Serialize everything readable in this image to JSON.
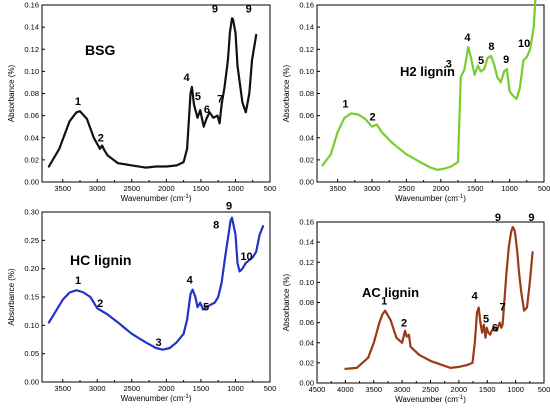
{
  "chart_data": [
    {
      "type": "line",
      "title": "BSG",
      "xlabel": "Wavenumber (cm",
      "xlabel_sup": "-1",
      "xlabel_end": ")",
      "ylabel": "Absorbance (%)",
      "xlim": [
        3800,
        500
      ],
      "ylim": [
        0,
        0.16
      ],
      "xticks": [
        3500,
        3000,
        2500,
        2000,
        1500,
        1000,
        500
      ],
      "xtick_labels": [
        "3500",
        "3000",
        "2500",
        "2000",
        "1500",
        "1000",
        "500"
      ],
      "yticks": [
        0,
        0.02,
        0.04,
        0.06,
        0.08,
        0.1,
        0.12,
        0.14,
        0.16
      ],
      "ytick_labels": [
        "0.00",
        "0.02",
        "0.04",
        "0.06",
        "0.08",
        "0.10",
        "0.12",
        "0.14",
        "0.16"
      ],
      "color": "#111111",
      "x": [
        3700,
        3550,
        3400,
        3300,
        3250,
        3150,
        3050,
        2960,
        2930,
        2900,
        2850,
        2700,
        2500,
        2300,
        2150,
        2000,
        1850,
        1750,
        1700,
        1650,
        1630,
        1600,
        1550,
        1510,
        1460,
        1420,
        1375,
        1320,
        1260,
        1230,
        1200,
        1160,
        1110,
        1080,
        1050,
        1035,
        1000,
        970,
        900,
        850,
        800,
        760,
        700
      ],
      "y": [
        0.014,
        0.03,
        0.055,
        0.063,
        0.064,
        0.057,
        0.04,
        0.03,
        0.033,
        0.029,
        0.024,
        0.017,
        0.015,
        0.013,
        0.014,
        0.014,
        0.015,
        0.018,
        0.03,
        0.08,
        0.086,
        0.07,
        0.058,
        0.065,
        0.05,
        0.057,
        0.063,
        0.058,
        0.06,
        0.053,
        0.07,
        0.085,
        0.11,
        0.135,
        0.148,
        0.147,
        0.135,
        0.105,
        0.072,
        0.063,
        0.08,
        0.11,
        0.133
      ],
      "peaks": [
        {
          "label": "1",
          "x": 3280,
          "y": 0.064
        },
        {
          "label": "2",
          "x": 2950,
          "y": 0.033
        },
        {
          "label": "4",
          "x": 1650,
          "y": 0.086
        },
        {
          "label": "5",
          "x": 1530,
          "y": 0.065
        },
        {
          "label": "6",
          "x": 1400,
          "y": 0.057
        },
        {
          "label": "7",
          "x": 1250,
          "y": 0.06
        },
        {
          "label": "9",
          "x": 1080,
          "y": 0.148
        },
        {
          "label": "9",
          "x": 910,
          "y": 0.148
        }
      ]
    },
    {
      "type": "line",
      "title": "H2 lignin",
      "xlabel": "Wavenumber (cm",
      "xlabel_sup": "-1",
      "xlabel_end": ")",
      "ylabel": "Absorbance (%)",
      "xlim": [
        3800,
        500
      ],
      "ylim": [
        0,
        0.16
      ],
      "xticks": [
        3500,
        3000,
        2500,
        2000,
        1500,
        1000,
        500
      ],
      "xtick_labels": [
        "3500",
        "3000",
        "2500",
        "2000",
        "1500",
        "1000",
        "500"
      ],
      "yticks": [
        0,
        0.02,
        0.04,
        0.06,
        0.08,
        0.1,
        0.12,
        0.14,
        0.16
      ],
      "ytick_labels": [
        "0.00",
        "0.02",
        "0.04",
        "0.06",
        "0.08",
        "0.10",
        "0.12",
        "0.14",
        "0.16"
      ],
      "color": "#7acc2c",
      "x": [
        3720,
        3600,
        3500,
        3400,
        3300,
        3200,
        3100,
        3000,
        2930,
        2860,
        2700,
        2500,
        2300,
        2150,
        2050,
        1950,
        1850,
        1750,
        1710,
        1660,
        1600,
        1560,
        1510,
        1460,
        1420,
        1370,
        1320,
        1270,
        1220,
        1180,
        1130,
        1080,
        1040,
        1000,
        950,
        900,
        850,
        800,
        750,
        700,
        650,
        620
      ],
      "y": [
        0.015,
        0.025,
        0.045,
        0.058,
        0.062,
        0.061,
        0.057,
        0.05,
        0.052,
        0.045,
        0.035,
        0.025,
        0.018,
        0.013,
        0.011,
        0.012,
        0.014,
        0.018,
        0.095,
        0.101,
        0.122,
        0.112,
        0.097,
        0.105,
        0.1,
        0.102,
        0.112,
        0.114,
        0.105,
        0.095,
        0.09,
        0.1,
        0.102,
        0.082,
        0.078,
        0.075,
        0.085,
        0.11,
        0.113,
        0.12,
        0.14,
        0.17
      ],
      "peaks": [
        {
          "label": "1",
          "x": 3330,
          "y": 0.062
        },
        {
          "label": "2",
          "x": 2950,
          "y": 0.052
        },
        {
          "label": "3",
          "x": 1740,
          "y": 0.098
        },
        {
          "label": "4",
          "x": 1600,
          "y": 0.122
        },
        {
          "label": "5",
          "x": 1460,
          "y": 0.105
        },
        {
          "label": "8",
          "x": 1250,
          "y": 0.114
        },
        {
          "label": "9",
          "x": 1050,
          "y": 0.102
        },
        {
          "label": "10",
          "x": 820,
          "y": 0.113
        }
      ]
    },
    {
      "type": "line",
      "title": "HC lignin",
      "xlabel": "Wavenumber (cm",
      "xlabel_sup": "-1",
      "xlabel_end": ")",
      "ylabel": "Absorbance (%)",
      "xlim": [
        3800,
        500
      ],
      "ylim": [
        0,
        0.3
      ],
      "xticks": [
        3500,
        3000,
        2500,
        2000,
        1500,
        1000,
        500
      ],
      "xtick_labels": [
        "3500",
        "3000",
        "2500",
        "2000",
        "1500",
        "1000",
        "500"
      ],
      "yticks": [
        0,
        0.05,
        0.1,
        0.15,
        0.2,
        0.25,
        0.3
      ],
      "ytick_labels": [
        "0.00",
        "0.05",
        "0.10",
        "0.15",
        "0.20",
        "0.25",
        "0.30"
      ],
      "color": "#2233c8",
      "x": [
        3700,
        3600,
        3500,
        3400,
        3300,
        3200,
        3100,
        3000,
        2930,
        2860,
        2700,
        2500,
        2300,
        2150,
        2050,
        1950,
        1850,
        1750,
        1700,
        1650,
        1620,
        1580,
        1550,
        1510,
        1470,
        1420,
        1350,
        1300,
        1250,
        1200,
        1150,
        1100,
        1070,
        1050,
        1000,
        970,
        940,
        900,
        850,
        800,
        750,
        700,
        650,
        600
      ],
      "y": [
        0.105,
        0.125,
        0.145,
        0.158,
        0.162,
        0.158,
        0.15,
        0.13,
        0.125,
        0.12,
        0.105,
        0.085,
        0.07,
        0.06,
        0.057,
        0.06,
        0.07,
        0.085,
        0.11,
        0.155,
        0.163,
        0.15,
        0.132,
        0.14,
        0.128,
        0.132,
        0.137,
        0.14,
        0.15,
        0.175,
        0.22,
        0.26,
        0.285,
        0.29,
        0.26,
        0.21,
        0.195,
        0.2,
        0.21,
        0.215,
        0.22,
        0.23,
        0.26,
        0.275
      ],
      "peaks": [
        {
          "label": "1",
          "x": 3250,
          "y": 0.162
        },
        {
          "label": "2",
          "x": 2930,
          "y": 0.125
        },
        {
          "label": "3",
          "x": 2100,
          "y": 0.058
        },
        {
          "label": "4",
          "x": 1620,
          "y": 0.163
        },
        {
          "label": "5",
          "x": 1470,
          "y": 0.13
        },
        {
          "label": "8",
          "x": 1150,
          "y": 0.26
        },
        {
          "label": "9",
          "x": 1050,
          "y": 0.29
        },
        {
          "label": "10",
          "x": 900,
          "y": 0.205
        }
      ]
    },
    {
      "type": "line",
      "title": "AC lignin",
      "xlabel": "Wavenumber (cm",
      "xlabel_sup": "-1",
      "xlabel_end": ")",
      "ylabel": "Absorbance (%)",
      "xlim": [
        4500,
        500
      ],
      "ylim": [
        0,
        0.16
      ],
      "xticks": [
        4500,
        4000,
        3500,
        3000,
        2500,
        2000,
        1500,
        1000,
        500
      ],
      "xtick_labels": [
        "4500",
        "4000",
        "3500",
        "3000",
        "2500",
        "2000",
        "1500",
        "1000",
        "500"
      ],
      "yticks": [
        0,
        0.02,
        0.04,
        0.06,
        0.08,
        0.1,
        0.12,
        0.14,
        0.16
      ],
      "ytick_labels": [
        "0.00",
        "0.02",
        "0.04",
        "0.06",
        "0.08",
        "0.10",
        "0.12",
        "0.14",
        "0.16"
      ],
      "color": "#9a3a1a",
      "x": [
        4000,
        3800,
        3600,
        3500,
        3400,
        3350,
        3300,
        3200,
        3100,
        3000,
        2950,
        2920,
        2880,
        2850,
        2700,
        2500,
        2300,
        2150,
        2000,
        1850,
        1760,
        1720,
        1680,
        1650,
        1620,
        1590,
        1560,
        1530,
        1510,
        1480,
        1450,
        1420,
        1380,
        1330,
        1280,
        1250,
        1230,
        1200,
        1160,
        1120,
        1080,
        1050,
        1020,
        1000,
        970,
        940,
        900,
        850,
        800,
        750,
        700
      ],
      "y": [
        0.014,
        0.015,
        0.025,
        0.04,
        0.06,
        0.068,
        0.072,
        0.062,
        0.045,
        0.04,
        0.052,
        0.046,
        0.048,
        0.036,
        0.028,
        0.022,
        0.018,
        0.015,
        0.016,
        0.018,
        0.02,
        0.04,
        0.07,
        0.075,
        0.06,
        0.05,
        0.058,
        0.045,
        0.055,
        0.05,
        0.048,
        0.052,
        0.055,
        0.052,
        0.06,
        0.055,
        0.058,
        0.08,
        0.11,
        0.135,
        0.15,
        0.155,
        0.152,
        0.145,
        0.13,
        0.11,
        0.09,
        0.072,
        0.075,
        0.1,
        0.13
      ],
      "peaks": [
        {
          "label": "1",
          "x": 3300,
          "y": 0.072
        },
        {
          "label": "2",
          "x": 2950,
          "y": 0.052
        },
        {
          "label": "4",
          "x": 1670,
          "y": 0.075
        },
        {
          "label": "5",
          "x": 1540,
          "y": 0.058
        },
        {
          "label": "6",
          "x": 1400,
          "y": 0.055
        },
        {
          "label": "7",
          "x": 1250,
          "y": 0.06
        },
        {
          "label": "9",
          "x": 1120,
          "y": 0.155
        },
        {
          "label": "9",
          "x": 880,
          "y": 0.155
        }
      ]
    }
  ]
}
